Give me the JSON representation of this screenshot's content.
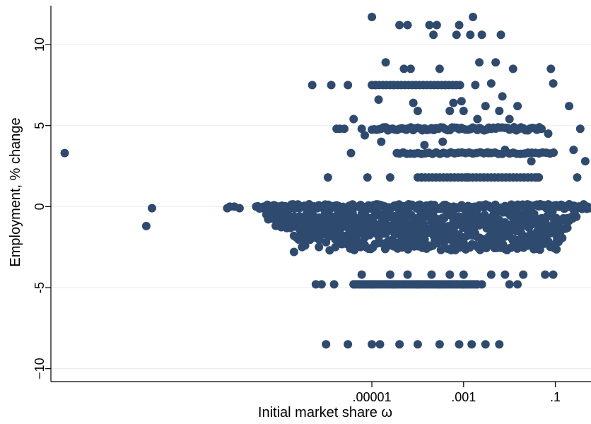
{
  "chart_data": {
    "type": "scatter",
    "title": "",
    "xlabel": "Initial market share ω",
    "ylabel": "Employment, % change",
    "x_scale": "log10",
    "xlim": [
      1e-12,
      0.6
    ],
    "ylim": [
      -10.8,
      12.4
    ],
    "grid": true,
    "legend": "none",
    "marker_color": "#2e4a6f",
    "x_ticks": [
      {
        "value": 1e-05,
        "label": ".00001"
      },
      {
        "value": 0.001,
        "label": ".001"
      },
      {
        "value": 0.1,
        "label": ".1"
      }
    ],
    "y_ticks": [
      {
        "value": 10,
        "label": "10"
      },
      {
        "value": 5,
        "label": "5"
      },
      {
        "value": 0,
        "label": "0"
      },
      {
        "value": -5,
        "label": "-5"
      },
      {
        "value": -10,
        "label": "−10"
      }
    ],
    "points": [
      {
        "x": 2e-12,
        "y": 3.3
      },
      {
        "x": 1.2e-10,
        "y": -1.2
      },
      {
        "x": 1.6e-10,
        "y": -0.1
      },
      {
        "x": 7e-09,
        "y": -0.1
      },
      {
        "x": 8e-09,
        "y": 0
      },
      {
        "x": 1e-08,
        "y": 0
      },
      {
        "x": 1.3e-08,
        "y": -0.1
      },
      {
        "x": 3e-08,
        "y": 0
      },
      {
        "x": 4e-08,
        "y": -0.1
      },
      {
        "x": 5e-08,
        "y": 0
      },
      {
        "x": 6e-08,
        "y": -0.2
      },
      {
        "x": 8e-08,
        "y": 0
      },
      {
        "x": 1e-07,
        "y": -0.2
      },
      {
        "x": 1.3e-07,
        "y": -0.3
      },
      {
        "x": 2e-07,
        "y": -2.8
      },
      {
        "x": 3e-07,
        "y": -2.5
      },
      {
        "x": 3.5e-07,
        "y": -2.4
      },
      {
        "x": 4e-07,
        "y": -1.8
      },
      {
        "x": 5e-07,
        "y": 7.5
      },
      {
        "x": 7e-07,
        "y": -2.5
      },
      {
        "x": 1e-06,
        "y": -2.2
      },
      {
        "x": 1.1e-06,
        "y": 1.8
      },
      {
        "x": 1.3e-06,
        "y": 7.5
      },
      {
        "x": 1.2e-06,
        "y": -2.7
      },
      {
        "x": 1.6e-06,
        "y": -2.5
      },
      {
        "x": 3e-06,
        "y": 7.5
      },
      {
        "x": 2.5e-06,
        "y": 4.8
      },
      {
        "x": 3.5e-06,
        "y": 3.3
      },
      {
        "x": 2e-06,
        "y": 4.8
      },
      {
        "x": 1.7e-06,
        "y": 4.8
      },
      {
        "x": 4e-06,
        "y": 5.4
      },
      {
        "x": 6e-06,
        "y": 4.8
      },
      {
        "x": 7e-06,
        "y": 4.4
      },
      {
        "x": 8e-06,
        "y": 1.8
      },
      {
        "x": 1e-05,
        "y": 11.7
      },
      {
        "x": 1.2e-05,
        "y": 7.5
      },
      {
        "x": 1.4e-05,
        "y": 6.6
      },
      {
        "x": 1.6e-05,
        "y": 4.0
      },
      {
        "x": 2e-05,
        "y": 8.9
      },
      {
        "x": 2.5e-05,
        "y": 1.8
      },
      {
        "x": 3e-05,
        "y": 7.5
      },
      {
        "x": 3.5e-05,
        "y": 3.3
      },
      {
        "x": 4e-05,
        "y": 11.2
      },
      {
        "x": 5e-05,
        "y": 8.5
      },
      {
        "x": 6e-05,
        "y": 11.2
      },
      {
        "x": 7e-05,
        "y": 8.5
      },
      {
        "x": 8e-05,
        "y": 6.4
      },
      {
        "x": 0.0001,
        "y": 5.9
      },
      {
        "x": 0.00012,
        "y": 1.8
      },
      {
        "x": 0.00014,
        "y": 3.8
      },
      {
        "x": 0.00018,
        "y": 11.2
      },
      {
        "x": 0.00022,
        "y": 10.6
      },
      {
        "x": 0.00026,
        "y": 11.2
      },
      {
        "x": 0.0003,
        "y": 8.5
      },
      {
        "x": 0.00035,
        "y": 4.0
      },
      {
        "x": 0.0004,
        "y": 7.5
      },
      {
        "x": 0.0005,
        "y": 5.9
      },
      {
        "x": 0.0006,
        "y": 6.4
      },
      {
        "x": 0.0007,
        "y": 10.6
      },
      {
        "x": 0.0008,
        "y": 11.2
      },
      {
        "x": 0.0009,
        "y": 6.5
      },
      {
        "x": 0.001,
        "y": 5.9
      },
      {
        "x": 0.0012,
        "y": 1.8
      },
      {
        "x": 0.0014,
        "y": 10.6
      },
      {
        "x": 0.0016,
        "y": 11.7
      },
      {
        "x": 0.0018,
        "y": 7.5
      },
      {
        "x": 0.002,
        "y": 5.4
      },
      {
        "x": 0.0022,
        "y": 8.9
      },
      {
        "x": 0.0025,
        "y": 10.6
      },
      {
        "x": 0.003,
        "y": 6.2
      },
      {
        "x": 0.0035,
        "y": 3.3
      },
      {
        "x": 0.004,
        "y": 7.6
      },
      {
        "x": 0.005,
        "y": 8.9
      },
      {
        "x": 0.006,
        "y": 5.9
      },
      {
        "x": 0.0065,
        "y": 10.6
      },
      {
        "x": 0.007,
        "y": 6.8
      },
      {
        "x": 0.008,
        "y": 3.5
      },
      {
        "x": 0.01,
        "y": 5.4
      },
      {
        "x": 0.012,
        "y": 8.5
      },
      {
        "x": 0.015,
        "y": 6.2
      },
      {
        "x": 0.02,
        "y": 4.8
      },
      {
        "x": 0.025,
        "y": 3.3
      },
      {
        "x": 0.03,
        "y": 2.8
      },
      {
        "x": 0.04,
        "y": 1.8
      },
      {
        "x": 0.05,
        "y": 4.8
      },
      {
        "x": 0.07,
        "y": 4.5
      },
      {
        "x": 0.08,
        "y": 8.5
      },
      {
        "x": 0.09,
        "y": 7.6
      },
      {
        "x": 0.2,
        "y": 6.2
      },
      {
        "x": 0.25,
        "y": 3.5
      },
      {
        "x": 0.3,
        "y": 1.8
      },
      {
        "x": 0.35,
        "y": 4.8
      },
      {
        "x": 0.45,
        "y": 2.8
      },
      {
        "x": 0.5,
        "y": 0
      },
      {
        "x": 0.25,
        "y": 0
      },
      {
        "x": 0.15,
        "y": 0
      },
      {
        "x": 0.12,
        "y": -1.2
      },
      {
        "x": 0.11,
        "y": -2.0
      },
      {
        "x": 0.1,
        "y": -2.3
      },
      {
        "x": 0.09,
        "y": -4.2
      },
      {
        "x": 0.06,
        "y": -4.2
      },
      {
        "x": 0.04,
        "y": -2.6
      },
      {
        "x": 0.02,
        "y": -4.2
      },
      {
        "x": 0.015,
        "y": -4.8
      },
      {
        "x": 0.01,
        "y": -4.8
      },
      {
        "x": 0.008,
        "y": -4.2
      },
      {
        "x": 0.006,
        "y": -8.5
      },
      {
        "x": 0.004,
        "y": -4.2
      },
      {
        "x": 0.003,
        "y": -8.5
      },
      {
        "x": 0.002,
        "y": -4.8
      },
      {
        "x": 0.0015,
        "y": -8.5
      },
      {
        "x": 0.001,
        "y": -4.2
      },
      {
        "x": 0.0008,
        "y": -8.5
      },
      {
        "x": 0.0005,
        "y": -4.2
      },
      {
        "x": 0.0003,
        "y": -8.5
      },
      {
        "x": 0.0002,
        "y": -4.2
      },
      {
        "x": 0.0001,
        "y": -8.5
      },
      {
        "x": 6e-05,
        "y": -4.2
      },
      {
        "x": 4e-05,
        "y": -8.5
      },
      {
        "x": 2.5e-05,
        "y": -4.2
      },
      {
        "x": 1.5e-05,
        "y": -8.5
      },
      {
        "x": 1e-05,
        "y": -8.5
      },
      {
        "x": 6e-06,
        "y": -4.2
      },
      {
        "x": 3e-06,
        "y": -8.5
      },
      {
        "x": 1e-06,
        "y": -8.5
      },
      {
        "x": 6e-07,
        "y": -4.8
      },
      {
        "x": 8e-07,
        "y": -4.8
      },
      {
        "x": 1.5e-06,
        "y": -4.8
      },
      {
        "x": 4e-06,
        "y": -4.8
      },
      {
        "x": 1e-05,
        "y": -4.8
      },
      {
        "x": 3e-05,
        "y": -4.8
      },
      {
        "x": 0.0001,
        "y": -4.8
      },
      {
        "x": 0.0003,
        "y": -4.8
      },
      {
        "x": 0.001,
        "y": -4.8
      },
      {
        "x": 0.0025,
        "y": -4.8
      }
    ]
  }
}
